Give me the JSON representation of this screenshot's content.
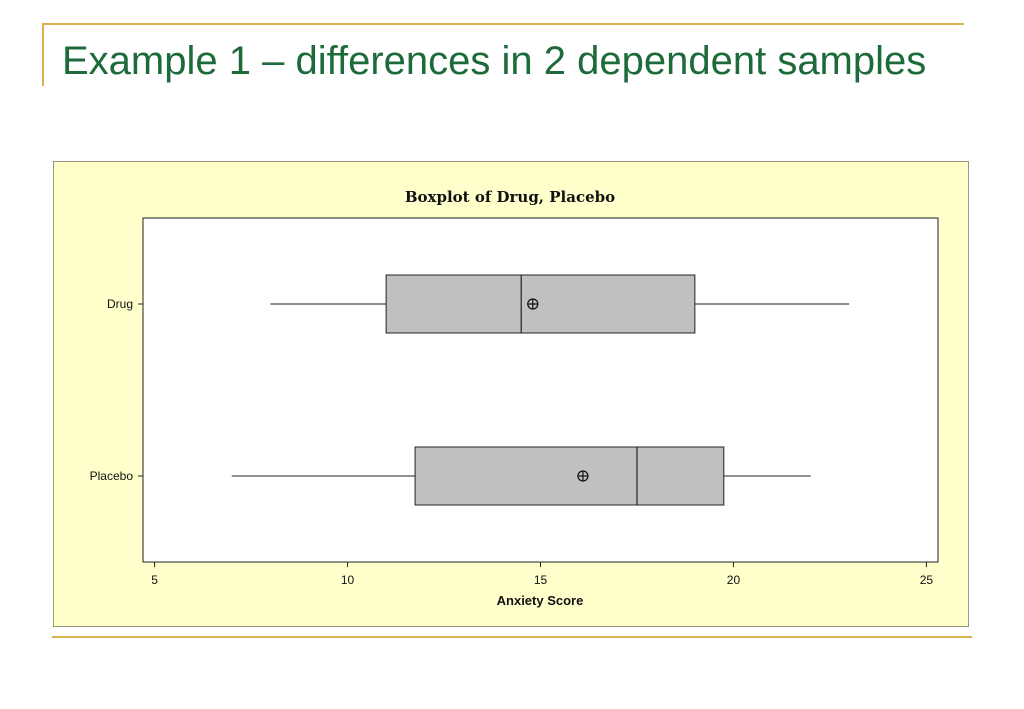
{
  "slide": {
    "title": "Example 1 – differences in 2 dependent samples",
    "accent_color": "#d8b24a",
    "title_color": "#1d6b3a"
  },
  "chart_data": {
    "type": "boxplot",
    "orientation": "horizontal",
    "title": "Boxplot of Drug, Placebo",
    "xlabel": "Anxiety Score",
    "ylabel": "",
    "xlim": [
      4.7,
      25.3
    ],
    "xticks": [
      5,
      10,
      15,
      20,
      25
    ],
    "grid": false,
    "background_color": "#ffffcc",
    "box_color": "#c0c0c0",
    "series": [
      {
        "name": "Drug",
        "min": 8,
        "q1": 11,
        "median": 14.5,
        "q3": 19,
        "max": 23,
        "mean": 14.8
      },
      {
        "name": "Placebo",
        "min": 7,
        "q1": 11.75,
        "median": 17.5,
        "q3": 19.75,
        "max": 22,
        "mean": 16.1
      }
    ]
  }
}
